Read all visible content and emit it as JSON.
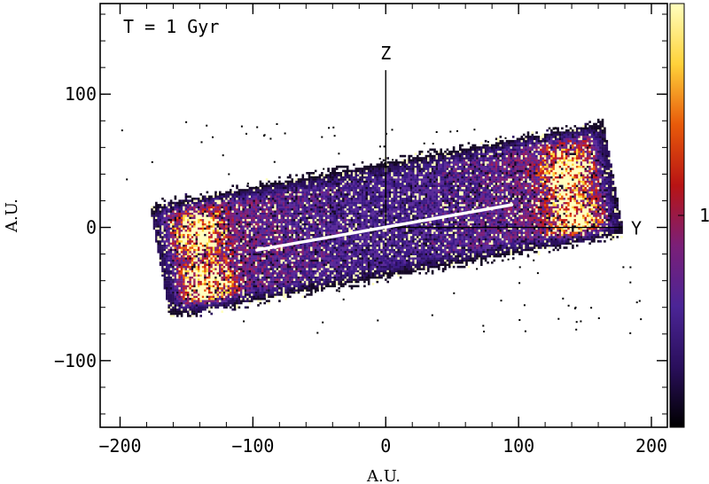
{
  "chart_data": {
    "type": "heatmap",
    "annotation": "T = 1 Gyr",
    "xlabel": "A.U.",
    "ylabel": "A.U.",
    "xlim": [
      -215,
      212
    ],
    "ylim": [
      -150,
      168
    ],
    "xticks": [
      -200,
      -100,
      0,
      100,
      200
    ],
    "xtick_labels": [
      "−200",
      "−100",
      "0",
      "100",
      "200"
    ],
    "yticks": [
      -100,
      0,
      100
    ],
    "ytick_labels": [
      "−100",
      "0",
      "100"
    ],
    "colorbar": {
      "tick_label": "1",
      "tick_value_fraction": 0.5,
      "colormap": [
        "#000000",
        "#2a0f5c",
        "#4b2596",
        "#7b1f78",
        "#b81414",
        "#e85a0a",
        "#ffd23a",
        "#ffffbe"
      ]
    },
    "bar_axes": [
      {
        "label": "Z",
        "from": [
          0,
          0
        ],
        "to": [
          0,
          118
        ]
      },
      {
        "label": "Y",
        "from": [
          0,
          0
        ],
        "to": [
          178,
          0
        ]
      }
    ],
    "bar_major_axis": {
      "from": [
        -97,
        -17
      ],
      "to": [
        95,
        17
      ],
      "color": "#ffffff"
    },
    "density_structure": {
      "band_start": [
        -165,
        -25
      ],
      "band_end": [
        165,
        35
      ],
      "band_half_width": 42,
      "lobes": [
        {
          "x": -140,
          "y": -5,
          "intensity": 0.9
        },
        {
          "x": -135,
          "y": -45,
          "intensity": 0.9
        },
        {
          "x": 135,
          "y": 40,
          "intensity": 0.9
        },
        {
          "x": 140,
          "y": 5,
          "intensity": 0.9
        }
      ]
    }
  }
}
